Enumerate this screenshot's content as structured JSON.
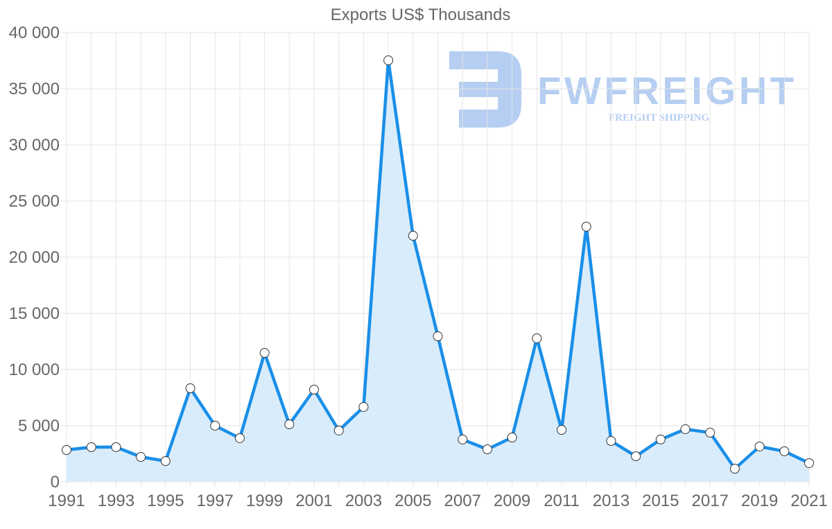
{
  "chart_data": {
    "type": "line",
    "title": "Exports US$ Thousands",
    "xlabel": "",
    "ylabel": "",
    "ylim": [
      0,
      40000
    ],
    "yticks": [
      0,
      5000,
      10000,
      15000,
      20000,
      25000,
      30000,
      35000,
      40000
    ],
    "ytick_labels": [
      "0",
      "5 000",
      "10 000",
      "15 000",
      "20 000",
      "25 000",
      "30 000",
      "35 000",
      "40 000"
    ],
    "xtick_labels": [
      "1991",
      "1993",
      "1995",
      "1997",
      "1999",
      "2001",
      "2003",
      "2005",
      "2007",
      "2009",
      "2011",
      "2013",
      "2015",
      "2017",
      "2019",
      "2021"
    ],
    "grid": true,
    "legend": null,
    "fill": true,
    "x": [
      1991,
      1992,
      1993,
      1994,
      1995,
      1996,
      1997,
      1998,
      1999,
      2000,
      2001,
      2002,
      2003,
      2004,
      2005,
      2006,
      2007,
      2008,
      2009,
      2010,
      2011,
      2012,
      2013,
      2014,
      2015,
      2016,
      2017,
      2018,
      2019,
      2020,
      2021
    ],
    "series": [
      {
        "name": "Exports US$ Thousands",
        "color": "#1a8fe8",
        "fill_color": "#d9ecfb",
        "values": [
          2840,
          3090,
          3090,
          2220,
          1850,
          8330,
          5000,
          3890,
          11480,
          5120,
          8210,
          4570,
          6670,
          37530,
          21910,
          12960,
          3770,
          2900,
          3950,
          12780,
          4630,
          22720,
          3640,
          2280,
          3770,
          4690,
          4380,
          1170,
          3150,
          2720,
          1670
        ]
      }
    ]
  },
  "watermark": {
    "brand": "FWFREIGHT",
    "tagline": "FREIGHT SHIPPING",
    "color": "#a9c6f0"
  }
}
